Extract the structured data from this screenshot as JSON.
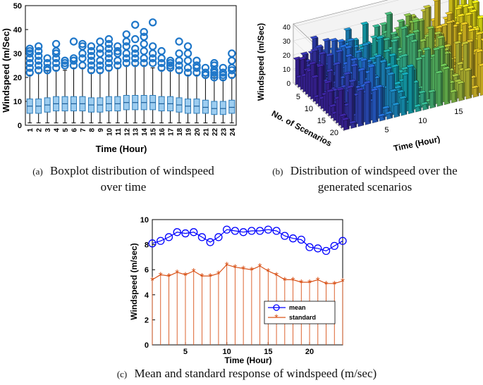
{
  "captions": {
    "a": {
      "tag": "(a)",
      "line1": "Boxplot distribution of windspeed",
      "line2": "over time"
    },
    "b": {
      "tag": "(b)",
      "line1": "Distribution of windspeed over the",
      "line2": "generated scenarios"
    },
    "c": {
      "tag": "(c)",
      "text": "Mean and standard response of windspeed (m/sec)"
    }
  },
  "chart_data": [
    {
      "id": "a",
      "type": "boxplot",
      "title": "",
      "xlabel": "Time (Hour)",
      "ylabel": "Windspeed (m/Sec)",
      "ylim": [
        0,
        50
      ],
      "yticks": [
        0,
        10,
        20,
        30,
        40,
        50
      ],
      "categories": [
        "1",
        "2",
        "3",
        "4",
        "5",
        "6",
        "7",
        "8",
        "9",
        "10",
        "11",
        "12",
        "13",
        "14",
        "15",
        "16",
        "17",
        "18",
        "19",
        "20",
        "21",
        "22",
        "23",
        "24"
      ],
      "q1": [
        5,
        5,
        5.5,
        6,
        6,
        6,
        6,
        5.5,
        5.5,
        6,
        6,
        6.5,
        6.5,
        6.5,
        6.5,
        6,
        6,
        5.5,
        5,
        5,
        5,
        4.5,
        4.5,
        5
      ],
      "median": [
        8,
        8,
        8.5,
        9,
        9,
        9,
        9,
        8.5,
        8.5,
        9,
        9,
        9.5,
        9.5,
        9.5,
        9.5,
        9,
        9,
        8.5,
        8,
        8,
        7.5,
        7,
        7,
        7.5
      ],
      "q3": [
        11,
        11,
        11.5,
        12,
        12,
        12,
        12,
        11.5,
        11.5,
        12,
        12,
        12.5,
        12.5,
        12.5,
        12.5,
        12,
        12,
        11.5,
        11,
        11,
        10.5,
        10,
        10,
        10.5
      ],
      "whisker_low": [
        1,
        1,
        1,
        1,
        1,
        1,
        1,
        1,
        1,
        1,
        1,
        1,
        1,
        1,
        1,
        1,
        1,
        1,
        1,
        1,
        1,
        1,
        1,
        1
      ],
      "whisker_high": [
        21,
        22,
        23,
        23,
        23,
        24,
        24,
        22,
        22,
        23,
        24,
        25,
        25,
        25,
        24,
        23,
        23,
        22,
        21,
        21,
        20,
        20,
        19,
        20
      ],
      "outliers": [
        [
          22,
          24,
          26,
          28,
          30,
          31,
          32
        ],
        [
          23,
          25,
          27,
          29,
          31,
          33
        ],
        [
          23,
          24,
          26,
          28
        ],
        [
          24,
          26,
          28,
          30,
          31,
          34
        ],
        [
          25,
          26,
          27
        ],
        [
          25,
          27,
          28,
          35
        ],
        [
          25,
          28,
          30,
          33,
          34
        ],
        [
          23,
          25,
          27,
          29,
          31,
          33
        ],
        [
          23,
          25,
          27,
          30,
          32,
          35
        ],
        [
          24,
          26,
          28,
          30,
          32,
          34,
          36
        ],
        [
          25,
          27,
          30,
          31,
          33
        ],
        [
          26,
          28,
          30,
          33,
          35,
          38
        ],
        [
          26,
          28,
          30,
          32,
          36,
          42
        ],
        [
          26,
          28,
          31,
          34,
          37,
          39
        ],
        [
          26,
          28,
          30,
          33,
          43
        ],
        [
          24,
          26,
          28,
          31
        ],
        [
          24,
          25,
          26,
          27
        ],
        [
          23,
          25,
          27,
          30,
          35
        ],
        [
          22,
          24,
          27,
          30,
          33
        ],
        [
          22,
          24,
          25,
          27
        ],
        [
          21,
          22,
          24
        ],
        [
          20,
          21,
          22,
          23,
          25,
          26
        ],
        [
          20,
          21,
          22,
          24
        ],
        [
          21,
          23,
          24,
          27,
          30
        ]
      ]
    },
    {
      "id": "b",
      "type": "bar3d",
      "title": "",
      "xlabel": "Time (Hour)",
      "ylabel": "No. of Scenarios",
      "zlabel": "Windspeed (m/Sec)",
      "xticks": [
        5,
        10,
        15,
        20
      ],
      "yticks": [
        5,
        10,
        15,
        20
      ],
      "zticks": [
        0,
        10,
        20,
        30,
        40
      ],
      "zlim": [
        0,
        42
      ],
      "n_hours": 24,
      "n_scenarios": 20
    },
    {
      "id": "c",
      "type": "line",
      "title": "",
      "xlabel": "Time (Hour)",
      "ylabel": "Windspeed (m/sec)",
      "xlim": [
        1,
        24
      ],
      "ylim": [
        0,
        10
      ],
      "xticks": [
        5,
        10,
        15,
        20
      ],
      "yticks": [
        0,
        2,
        4,
        6,
        8,
        10
      ],
      "x": [
        1,
        2,
        3,
        4,
        5,
        6,
        7,
        8,
        9,
        10,
        11,
        12,
        13,
        14,
        15,
        16,
        17,
        18,
        19,
        20,
        21,
        22,
        23,
        24
      ],
      "series": [
        {
          "name": "mean",
          "marker": "o",
          "color": "#0000ff",
          "values": [
            8.1,
            8.3,
            8.6,
            9.0,
            8.9,
            9.0,
            8.6,
            8.2,
            8.6,
            9.2,
            9.1,
            9.0,
            9.1,
            9.1,
            9.2,
            9.1,
            8.7,
            8.5,
            8.4,
            7.8,
            7.7,
            7.5,
            7.9,
            8.3
          ]
        },
        {
          "name": "standard",
          "marker": "*",
          "color": "#d95319",
          "values": [
            5.2,
            5.6,
            5.5,
            5.8,
            5.6,
            5.9,
            5.5,
            5.5,
            5.7,
            6.4,
            6.2,
            6.1,
            6.0,
            6.3,
            5.9,
            5.6,
            5.2,
            5.2,
            5.0,
            5.0,
            5.2,
            4.9,
            4.9,
            5.1
          ]
        }
      ],
      "legend_position": "bottom-right"
    }
  ]
}
